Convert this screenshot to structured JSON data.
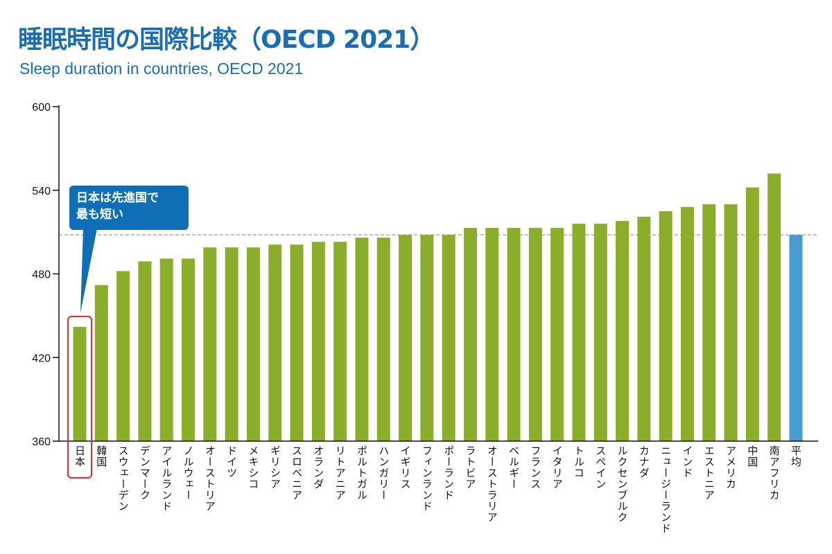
{
  "chart_data": {
    "type": "bar",
    "title": "睡眠時間の国際比較（OECD 2021）",
    "subtitle": "Sleep duration in countries, OECD 2021",
    "xlabel": "",
    "ylabel": "",
    "ylim": [
      360,
      600
    ],
    "yticks": [
      360,
      420,
      480,
      540,
      600
    ],
    "grid": false,
    "average_line": 508,
    "categories": [
      "日本",
      "韓国",
      "スウェーデン",
      "デンマーク",
      "アイルランド",
      "ノルウェー",
      "オーストリア",
      "ドイツ",
      "メキシコ",
      "ギリシア",
      "スロベニア",
      "オランダ",
      "リトアニア",
      "ポルトガル",
      "ハンガリー",
      "イギリス",
      "フィンランド",
      "ポーランド",
      "ラトビア",
      "オーストラリア",
      "ベルギー",
      "フランス",
      "イタリア",
      "トルコ",
      "スペイン",
      "ルクセンブルク",
      "カナダ",
      "ニュージーランド",
      "インド",
      "エストニア",
      "アメリカ",
      "中国",
      "南アフリカ",
      "平均"
    ],
    "values": [
      442,
      472,
      482,
      489,
      491,
      491,
      499,
      499,
      499,
      501,
      501,
      503,
      503,
      506,
      506,
      508,
      508,
      508,
      513,
      513,
      513,
      513,
      513,
      516,
      516,
      518,
      521,
      525,
      528,
      530,
      530,
      542,
      552,
      508
    ],
    "colors": {
      "country": "#8aae2a",
      "average": "#4a9bd0",
      "title": "#1a6db3",
      "callout": "#0e6fb6",
      "highlight": "#e52a2a"
    },
    "annotation": {
      "text_line1": "日本は先進国で",
      "text_line2": "最も短い",
      "target": "日本"
    }
  }
}
